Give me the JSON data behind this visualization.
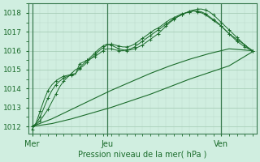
{
  "bg_color": "#d0eee0",
  "grid_color": "#a0c8b0",
  "grid_minor_color": "#b8d8c8",
  "line_color": "#1a6b2a",
  "xlabel": "Pression niveau de la mer( hPa )",
  "xtick_labels": [
    "Mer",
    "Jeu",
    "Ven"
  ],
  "xtick_positions": [
    0,
    19,
    48
  ],
  "ytick_labels": [
    "1012",
    "1013",
    "1014",
    "1015",
    "1016",
    "1017",
    "1018"
  ],
  "ylim": [
    1011.6,
    1018.5
  ],
  "xlim": [
    -1,
    57
  ],
  "lines_marker": [
    [
      0,
      1012.0,
      1,
      1012.1,
      2,
      1012.3,
      3,
      1012.6,
      4,
      1012.9,
      5,
      1013.3,
      6,
      1013.7,
      7,
      1014.1,
      8,
      1014.4,
      9,
      1014.6,
      10,
      1014.8,
      11,
      1015.0,
      12,
      1015.1,
      13,
      1015.3,
      14,
      1015.5,
      15,
      1015.7,
      16,
      1015.9,
      17,
      1016.1,
      18,
      1016.25,
      19,
      1016.35,
      20,
      1016.3,
      21,
      1016.2,
      22,
      1016.1,
      23,
      1016.05,
      24,
      1016.0,
      25,
      1016.05,
      26,
      1016.1,
      27,
      1016.2,
      28,
      1016.3,
      29,
      1016.45,
      30,
      1016.6,
      31,
      1016.75,
      32,
      1016.9,
      33,
      1017.1,
      34,
      1017.3,
      35,
      1017.5,
      36,
      1017.65,
      37,
      1017.8,
      38,
      1017.9,
      39,
      1018.0,
      40,
      1018.1,
      41,
      1018.15,
      42,
      1018.2,
      43,
      1018.2,
      44,
      1018.15,
      45,
      1018.05,
      46,
      1017.9,
      47,
      1017.7,
      48,
      1017.5,
      49,
      1017.3,
      50,
      1017.1,
      51,
      1016.9,
      52,
      1016.7,
      53,
      1016.5,
      54,
      1016.3,
      55,
      1016.1,
      56,
      1016.0
    ],
    [
      0,
      1012.0,
      1,
      1012.15,
      2,
      1012.5,
      3,
      1013.0,
      4,
      1013.5,
      5,
      1013.9,
      6,
      1014.2,
      7,
      1014.4,
      8,
      1014.55,
      9,
      1014.65,
      10,
      1014.7,
      11,
      1014.75,
      12,
      1015.3,
      13,
      1015.4,
      14,
      1015.5,
      15,
      1015.6,
      16,
      1015.7,
      17,
      1015.85,
      18,
      1016.0,
      19,
      1016.1,
      20,
      1016.1,
      21,
      1016.05,
      22,
      1016.0,
      23,
      1016.0,
      24,
      1016.05,
      25,
      1016.1,
      26,
      1016.2,
      27,
      1016.35,
      28,
      1016.5,
      29,
      1016.65,
      30,
      1016.8,
      31,
      1016.95,
      32,
      1017.1,
      33,
      1017.25,
      34,
      1017.4,
      35,
      1017.55,
      36,
      1017.7,
      37,
      1017.8,
      38,
      1017.9,
      39,
      1018.0,
      40,
      1018.05,
      41,
      1018.1,
      42,
      1018.1,
      43,
      1018.05,
      44,
      1017.95,
      45,
      1017.8,
      46,
      1017.65,
      47,
      1017.5,
      48,
      1017.3,
      49,
      1017.1,
      50,
      1016.9,
      51,
      1016.7,
      52,
      1016.5,
      53,
      1016.35,
      54,
      1016.2,
      55,
      1016.1,
      56,
      1016.0
    ],
    [
      0,
      1011.85,
      1,
      1012.2,
      2,
      1012.8,
      3,
      1013.4,
      4,
      1013.9,
      5,
      1014.2,
      6,
      1014.4,
      7,
      1014.55,
      8,
      1014.65,
      9,
      1014.7,
      10,
      1014.75,
      11,
      1014.8,
      12,
      1015.05,
      13,
      1015.2,
      14,
      1015.4,
      15,
      1015.6,
      16,
      1015.8,
      17,
      1016.0,
      18,
      1016.15,
      19,
      1016.3,
      20,
      1016.35,
      21,
      1016.3,
      22,
      1016.25,
      23,
      1016.2,
      24,
      1016.2,
      25,
      1016.25,
      26,
      1016.35,
      27,
      1016.5,
      28,
      1016.65,
      29,
      1016.8,
      30,
      1016.95,
      31,
      1017.1,
      32,
      1017.2,
      33,
      1017.35,
      34,
      1017.5,
      35,
      1017.65,
      36,
      1017.75,
      37,
      1017.85,
      38,
      1017.95,
      39,
      1018.0,
      40,
      1018.05,
      41,
      1018.1,
      42,
      1018.05,
      43,
      1018.0,
      44,
      1017.9,
      45,
      1017.75,
      46,
      1017.6,
      47,
      1017.45,
      48,
      1017.3,
      49,
      1017.1,
      50,
      1016.9,
      51,
      1016.75,
      52,
      1016.6,
      53,
      1016.45,
      54,
      1016.3,
      55,
      1016.15,
      56,
      1016.0
    ]
  ],
  "lines_smooth": [
    [
      0,
      1012.0,
      5,
      1012.4,
      10,
      1012.9,
      15,
      1013.4,
      20,
      1013.9,
      25,
      1014.35,
      30,
      1014.8,
      35,
      1015.2,
      40,
      1015.55,
      45,
      1015.85,
      50,
      1016.1,
      56,
      1016.0
    ],
    [
      0,
      1012.0,
      5,
      1012.15,
      10,
      1012.4,
      15,
      1012.7,
      20,
      1013.0,
      25,
      1013.35,
      30,
      1013.7,
      35,
      1014.1,
      40,
      1014.5,
      45,
      1014.85,
      50,
      1015.2,
      56,
      1015.95
    ]
  ]
}
